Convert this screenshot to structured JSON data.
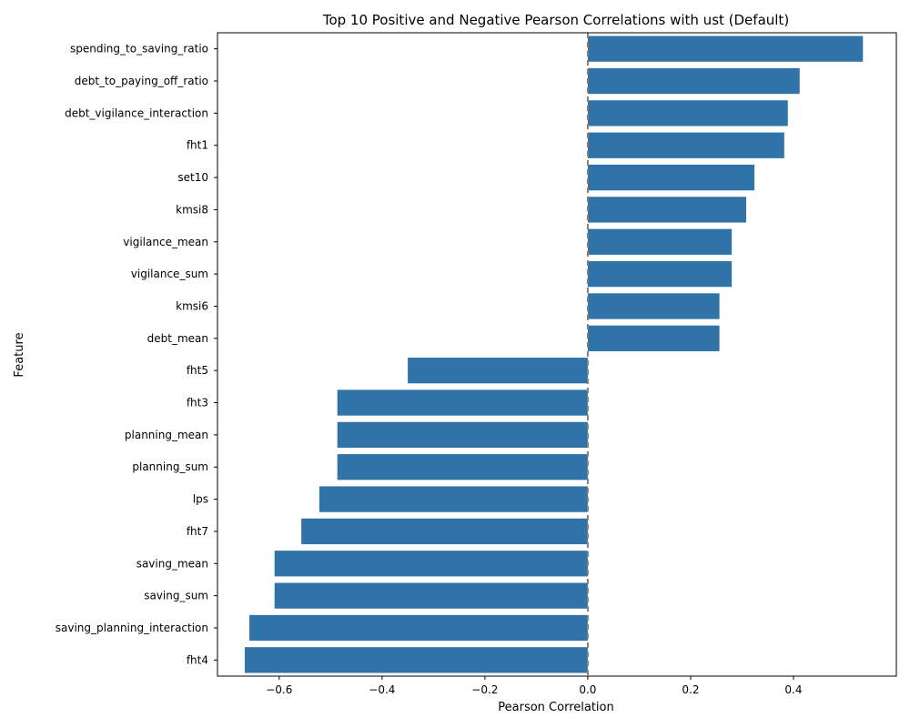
{
  "chart_data": {
    "type": "bar",
    "orientation": "horizontal",
    "title": "Top 10 Positive and Negative Pearson Correlations with ust (Default)",
    "xlabel": "Pearson Correlation",
    "ylabel": "Feature",
    "xlim": [
      -0.72,
      0.6
    ],
    "xticks": [
      -0.6,
      -0.4,
      -0.2,
      0.0,
      0.2,
      0.4
    ],
    "xtick_labels": [
      "−0.6",
      "−0.4",
      "−0.2",
      "0.0",
      "0.2",
      "0.4"
    ],
    "reference_line": {
      "value": 0.0,
      "style": "dashed",
      "color": "#808080"
    },
    "bar_color": "#2f73a8",
    "grid": false,
    "categories": [
      "spending_to_saving_ratio",
      "debt_to_paying_off_ratio",
      "debt_vigilance_interaction",
      "fht1",
      "set10",
      "kmsi8",
      "vigilance_mean",
      "vigilance_sum",
      "kmsi6",
      "debt_mean",
      "fht5",
      "fht3",
      "planning_mean",
      "planning_sum",
      "lps",
      "fht7",
      "saving_mean",
      "saving_sum",
      "saving_planning_interaction",
      "fht4"
    ],
    "values": [
      0.535,
      0.412,
      0.389,
      0.382,
      0.324,
      0.308,
      0.28,
      0.28,
      0.256,
      0.256,
      -0.35,
      -0.487,
      -0.487,
      -0.487,
      -0.522,
      -0.557,
      -0.609,
      -0.609,
      -0.658,
      -0.667
    ]
  }
}
